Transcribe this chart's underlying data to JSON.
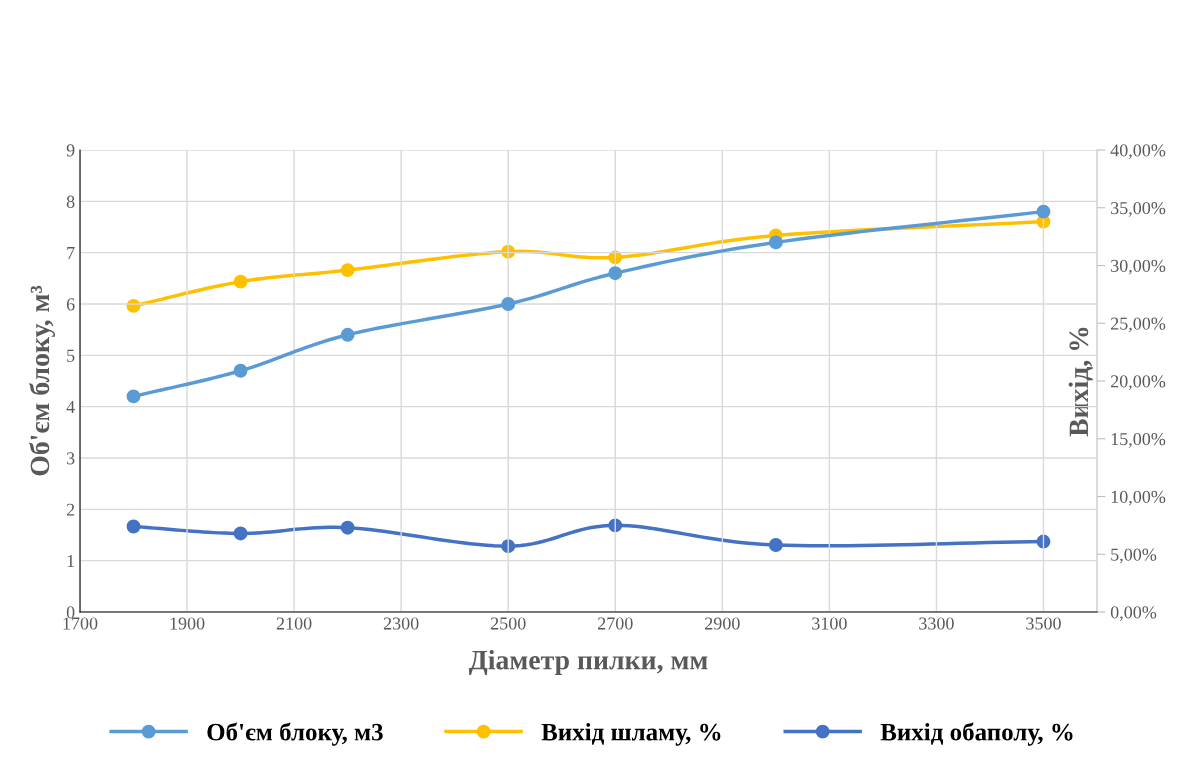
{
  "chart_data": {
    "type": "line",
    "xlabel": "Діаметр пилки, мм",
    "ylabel": "Об'єм блоку, м³",
    "y2label": "Вихід, %",
    "x": [
      1800,
      2000,
      2200,
      2500,
      2700,
      3000,
      3500
    ],
    "series": [
      {
        "name": "Об'єм блоку, м3",
        "color": "#5b9bd5",
        "values": [
          4.2,
          4.7,
          5.4,
          6.0,
          6.6,
          7.2,
          7.8
        ]
      },
      {
        "name": "Вихід шламу, %",
        "color": "#ffc000",
        "axis": "y2",
        "values": [
          26.5,
          28.6,
          29.6,
          31.2,
          30.7,
          32.6,
          33.8
        ]
      },
      {
        "name": "Вихід обаполу, %",
        "color": "#4472c4",
        "axis": "y2",
        "values": [
          7.4,
          6.8,
          7.3,
          5.7,
          7.5,
          5.8,
          6.1
        ]
      }
    ],
    "xlim": [
      1700,
      3600
    ],
    "xticks": [
      1700,
      1900,
      2100,
      2300,
      2500,
      2700,
      2900,
      3100,
      3300,
      3500
    ],
    "ylim": [
      0,
      9
    ],
    "yticks": [
      0,
      1,
      2,
      3,
      4,
      5,
      6,
      7,
      8,
      9
    ],
    "y2lim": [
      0,
      40
    ],
    "y2ticks": [
      {
        "value": 0,
        "label": "0,00%"
      },
      {
        "value": 5,
        "label": "5,00%"
      },
      {
        "value": 10,
        "label": "10,00%"
      },
      {
        "value": 15,
        "label": "15,00%"
      },
      {
        "value": 20,
        "label": "20,00%"
      },
      {
        "value": 25,
        "label": "25,00%"
      },
      {
        "value": 30,
        "label": "30,00%"
      },
      {
        "value": 35,
        "label": "35,00%"
      },
      {
        "value": 40,
        "label": "40,00%"
      }
    ],
    "grid": true,
    "legend": "bottom",
    "marker": "circle",
    "line_style": "solid"
  }
}
